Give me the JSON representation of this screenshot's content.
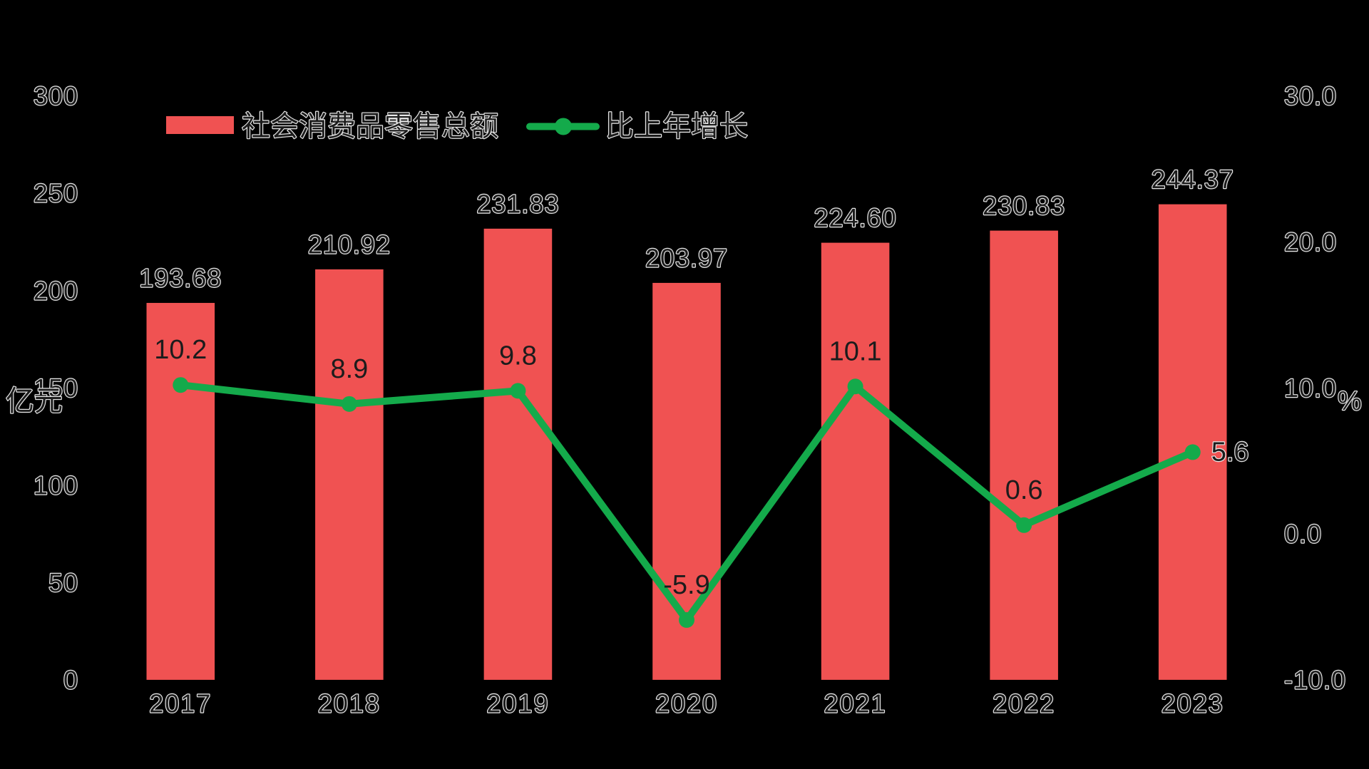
{
  "chart_data": {
    "type": "bar",
    "background": "#000000",
    "categories": [
      "2017",
      "2018",
      "2019",
      "2020",
      "2021",
      "2022",
      "2023"
    ],
    "series": [
      {
        "name": "社会消费品零售总额",
        "type": "bar",
        "axis": "left",
        "color": "#f05252",
        "values": [
          193.68,
          210.92,
          231.83,
          203.97,
          224.6,
          230.83,
          244.37
        ],
        "data_labels": [
          "193.68",
          "210.92",
          "231.83",
          "203.97",
          "224.60",
          "230.83",
          "244.37"
        ]
      },
      {
        "name": "比上年增长",
        "type": "line",
        "axis": "right",
        "color": "#14aa4b",
        "marker": "circle",
        "values": [
          10.2,
          8.9,
          9.8,
          -5.9,
          10.1,
          0.6,
          5.6
        ],
        "data_labels": [
          "10.2",
          "8.9",
          "9.8",
          "-5.9",
          "10.1",
          "0.6",
          "5.6"
        ]
      }
    ],
    "y_left": {
      "label": "亿元",
      "ylim": [
        0,
        300
      ],
      "ticks": [
        "0",
        "50",
        "100",
        "150",
        "200",
        "250",
        "300"
      ]
    },
    "y_right": {
      "label": "%",
      "ylim": [
        -10,
        30
      ],
      "ticks": [
        "-10.0",
        "0.0",
        "10.0",
        "20.0",
        "30.0"
      ]
    },
    "grid": false,
    "legend": {
      "position": "top-left"
    }
  }
}
